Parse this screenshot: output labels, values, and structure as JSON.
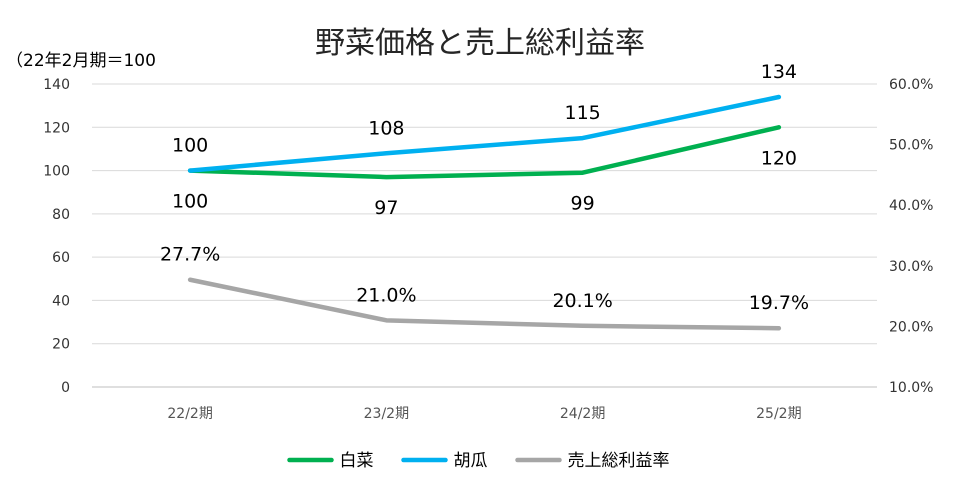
{
  "chart_data": {
    "type": "line",
    "title": "野菜価格と売上総利益率",
    "left_axis_label": "（22年2月期＝100",
    "categories": [
      "22/2期",
      "23/2期",
      "24/2期",
      "25/2期"
    ],
    "y_left": {
      "min": 0,
      "max": 140,
      "step": 20,
      "ticks": [
        "0",
        "20",
        "40",
        "60",
        "80",
        "100",
        "120",
        "140"
      ]
    },
    "y_right": {
      "min": 10.0,
      "max": 60.0,
      "step": 10.0,
      "ticks": [
        "10.0%",
        "20.0%",
        "30.0%",
        "40.0%",
        "50.0%",
        "60.0%"
      ]
    },
    "grid": true,
    "legend_position": "bottom",
    "series": [
      {
        "name": "白菜",
        "axis": "left",
        "color": "#00B050",
        "values": [
          100,
          97,
          99,
          120
        ],
        "labels": [
          "100",
          "97",
          "99",
          "120"
        ],
        "label_position": "below"
      },
      {
        "name": "胡瓜",
        "axis": "left",
        "color": "#00B0F0",
        "values": [
          100,
          108,
          115,
          134
        ],
        "labels": [
          "100",
          "108",
          "115",
          "134"
        ],
        "label_position": "above"
      },
      {
        "name": "売上総利益率",
        "axis": "right",
        "color": "#A6A6A6",
        "values": [
          27.7,
          21.0,
          20.1,
          19.7
        ],
        "labels": [
          "27.7%",
          "21.0%",
          "20.1%",
          "19.7%"
        ],
        "label_position": "above"
      }
    ]
  }
}
